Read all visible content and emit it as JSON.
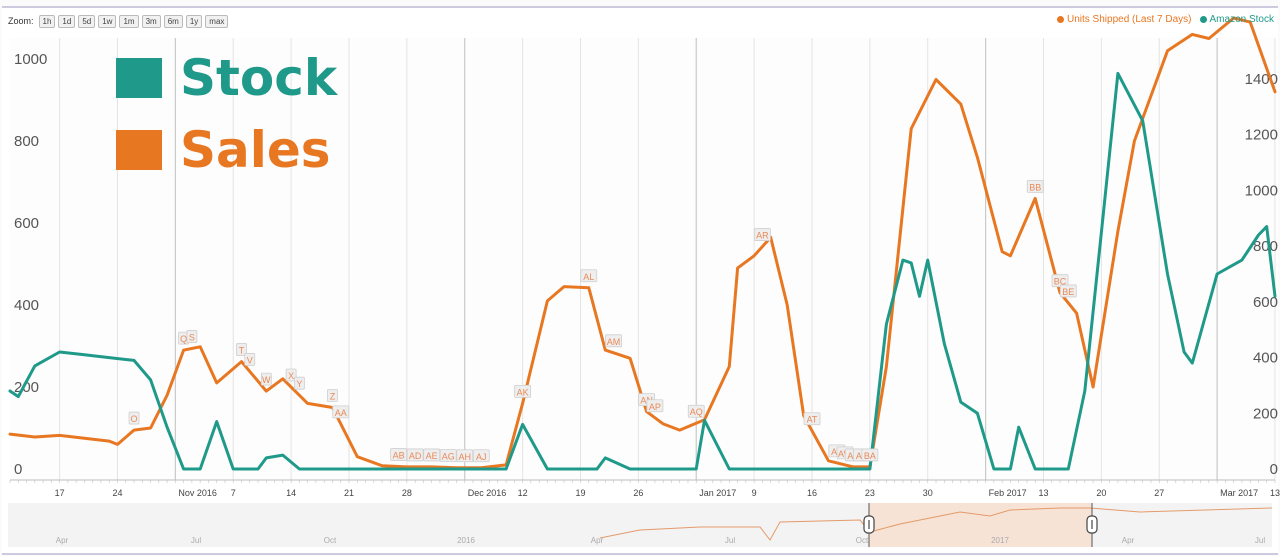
{
  "toolbar": {
    "zoom_label": "Zoom:",
    "zoom_buttons": [
      "1h",
      "1d",
      "5d",
      "1w",
      "1m",
      "3m",
      "6m",
      "1y",
      "max"
    ]
  },
  "legend_top": {
    "sales": "Units Shipped (Last 7 Days)",
    "stock": "Amazon Stock"
  },
  "overlay_legend": {
    "stock": "Stock",
    "sales": "Sales"
  },
  "colors": {
    "sales": "#e87722",
    "stock": "#1f9a8a",
    "grid": "#e4e4e4",
    "navigator_fill": "#f6e3d5",
    "navigator_line": "#e49a6a"
  },
  "chart_data": {
    "type": "line",
    "x_axis": {
      "start_date": "2016-10-11",
      "end_date": "2017-03-13",
      "tick_labels": [
        "17",
        "24",
        "Nov 2016",
        "7",
        "14",
        "21",
        "28",
        "Dec 2016",
        "12",
        "19",
        "26",
        "Jan 2017",
        "9",
        "16",
        "23",
        "30",
        "Feb 2017",
        "13",
        "20",
        "27",
        "Mar 2017",
        "13"
      ]
    },
    "y_left": {
      "range": [
        0,
        1050
      ],
      "ticks": [
        "0",
        "200",
        "400",
        "600",
        "800",
        "1000"
      ]
    },
    "y_right": {
      "range": [
        0,
        1450
      ],
      "ticks": [
        "0",
        "200",
        "400",
        "600",
        "800",
        "1000",
        "1200",
        "1400"
      ]
    },
    "series": [
      {
        "name": "Units Shipped (Last 7 Days)",
        "axis": "left",
        "points": [
          [
            "2016-10-11",
            85
          ],
          [
            "2016-10-14",
            78
          ],
          [
            "2016-10-17",
            82
          ],
          [
            "2016-10-20",
            75
          ],
          [
            "2016-10-23",
            68
          ],
          [
            "2016-10-24",
            60
          ],
          [
            "2016-10-26",
            95
          ],
          [
            "2016-10-28",
            100
          ],
          [
            "2016-10-30",
            180
          ],
          [
            "2016-11-01",
            290
          ],
          [
            "2016-11-03",
            298
          ],
          [
            "2016-11-05",
            210
          ],
          [
            "2016-11-08",
            262
          ],
          [
            "2016-11-11",
            190
          ],
          [
            "2016-11-13",
            220
          ],
          [
            "2016-11-16",
            160
          ],
          [
            "2016-11-19",
            150
          ],
          [
            "2016-11-22",
            30
          ],
          [
            "2016-11-25",
            8
          ],
          [
            "2016-11-28",
            5
          ],
          [
            "2016-12-01",
            5
          ],
          [
            "2016-12-04",
            3
          ],
          [
            "2016-12-07",
            3
          ],
          [
            "2016-12-10",
            10
          ],
          [
            "2016-12-12",
            160
          ],
          [
            "2016-12-15",
            410
          ],
          [
            "2016-12-17",
            445
          ],
          [
            "2016-12-20",
            442
          ],
          [
            "2016-12-22",
            290
          ],
          [
            "2016-12-25",
            270
          ],
          [
            "2016-12-27",
            140
          ],
          [
            "2016-12-29",
            110
          ],
          [
            "2016-12-31",
            95
          ],
          [
            "2017-01-03",
            120
          ],
          [
            "2017-01-06",
            250
          ],
          [
            "2017-01-07",
            490
          ],
          [
            "2017-01-09",
            520
          ],
          [
            "2017-01-11",
            565
          ],
          [
            "2017-01-13",
            400
          ],
          [
            "2017-01-15",
            130
          ],
          [
            "2017-01-18",
            20
          ],
          [
            "2017-01-21",
            5
          ],
          [
            "2017-01-23",
            5
          ],
          [
            "2017-01-25",
            250
          ],
          [
            "2017-01-28",
            830
          ],
          [
            "2017-01-31",
            950
          ],
          [
            "2017-02-03",
            890
          ],
          [
            "2017-02-05",
            760
          ],
          [
            "2017-02-08",
            530
          ],
          [
            "2017-02-09",
            520
          ],
          [
            "2017-02-12",
            660
          ],
          [
            "2017-02-15",
            430
          ],
          [
            "2017-02-17",
            380
          ],
          [
            "2017-02-19",
            200
          ],
          [
            "2017-02-22",
            580
          ],
          [
            "2017-02-24",
            800
          ],
          [
            "2017-02-28",
            1020
          ],
          [
            "2017-03-03",
            1060
          ],
          [
            "2017-03-05",
            1050
          ],
          [
            "2017-03-08",
            1100
          ],
          [
            "2017-03-10",
            1090
          ],
          [
            "2017-03-13",
            920
          ]
        ]
      },
      {
        "name": "Amazon Stock",
        "axis": "right",
        "points": [
          [
            "2016-10-11",
            280
          ],
          [
            "2016-10-12",
            260
          ],
          [
            "2016-10-14",
            370
          ],
          [
            "2016-10-17",
            420
          ],
          [
            "2016-10-20",
            410
          ],
          [
            "2016-10-23",
            400
          ],
          [
            "2016-10-26",
            390
          ],
          [
            "2016-10-28",
            320
          ],
          [
            "2016-10-30",
            150
          ],
          [
            "2016-11-01",
            0
          ],
          [
            "2016-11-03",
            0
          ],
          [
            "2016-11-05",
            170
          ],
          [
            "2016-11-07",
            0
          ],
          [
            "2016-11-10",
            0
          ],
          [
            "2016-11-11",
            40
          ],
          [
            "2016-11-13",
            50
          ],
          [
            "2016-11-15",
            0
          ],
          [
            "2016-12-10",
            0
          ],
          [
            "2016-12-12",
            160
          ],
          [
            "2016-12-15",
            0
          ],
          [
            "2016-12-21",
            0
          ],
          [
            "2016-12-22",
            40
          ],
          [
            "2016-12-25",
            0
          ],
          [
            "2017-01-02",
            0
          ],
          [
            "2017-01-03",
            175
          ],
          [
            "2017-01-06",
            0
          ],
          [
            "2017-01-23",
            0
          ],
          [
            "2017-01-25",
            520
          ],
          [
            "2017-01-27",
            750
          ],
          [
            "2017-01-28",
            740
          ],
          [
            "2017-01-29",
            620
          ],
          [
            "2017-01-30",
            750
          ],
          [
            "2017-02-01",
            450
          ],
          [
            "2017-02-03",
            240
          ],
          [
            "2017-02-05",
            200
          ],
          [
            "2017-02-07",
            0
          ],
          [
            "2017-02-09",
            0
          ],
          [
            "2017-02-10",
            150
          ],
          [
            "2017-02-12",
            0
          ],
          [
            "2017-02-16",
            0
          ],
          [
            "2017-02-18",
            280
          ],
          [
            "2017-02-20",
            850
          ],
          [
            "2017-02-22",
            1420
          ],
          [
            "2017-02-25",
            1250
          ],
          [
            "2017-02-28",
            700
          ],
          [
            "2017-03-02",
            420
          ],
          [
            "2017-03-03",
            380
          ],
          [
            "2017-03-06",
            700
          ],
          [
            "2017-03-09",
            750
          ],
          [
            "2017-03-11",
            840
          ],
          [
            "2017-03-12",
            870
          ],
          [
            "2017-03-13",
            620
          ]
        ]
      }
    ],
    "annotations": [
      {
        "label": "O",
        "date": "2016-10-26"
      },
      {
        "label": "Q",
        "date": "2016-11-01"
      },
      {
        "label": "S",
        "date": "2016-11-02"
      },
      {
        "label": "T",
        "date": "2016-11-08"
      },
      {
        "label": "V",
        "date": "2016-11-09"
      },
      {
        "label": "W",
        "date": "2016-11-11"
      },
      {
        "label": "X",
        "date": "2016-11-14"
      },
      {
        "label": "Y",
        "date": "2016-11-15"
      },
      {
        "label": "Z",
        "date": "2016-11-19"
      },
      {
        "label": "AA",
        "date": "2016-11-20"
      },
      {
        "label": "AB",
        "date": "2016-11-27"
      },
      {
        "label": "AD",
        "date": "2016-11-29"
      },
      {
        "label": "AE",
        "date": "2016-12-01"
      },
      {
        "label": "AG",
        "date": "2016-12-03"
      },
      {
        "label": "AH",
        "date": "2016-12-05"
      },
      {
        "label": "AJ",
        "date": "2016-12-07"
      },
      {
        "label": "AK",
        "date": "2016-12-12"
      },
      {
        "label": "AL",
        "date": "2016-12-20"
      },
      {
        "label": "AM",
        "date": "2016-12-23"
      },
      {
        "label": "AN",
        "date": "2016-12-27"
      },
      {
        "label": "AP",
        "date": "2016-12-28"
      },
      {
        "label": "AQ",
        "date": "2017-01-02"
      },
      {
        "label": "AR",
        "date": "2017-01-10"
      },
      {
        "label": "AT",
        "date": "2017-01-16"
      },
      {
        "label": "AV",
        "date": "2017-01-19"
      },
      {
        "label": "AW",
        "date": "2017-01-20"
      },
      {
        "label": "AX",
        "date": "2017-01-21"
      },
      {
        "label": "AY",
        "date": "2017-01-22"
      },
      {
        "label": "BA",
        "date": "2017-01-23"
      },
      {
        "label": "BB",
        "date": "2017-02-12"
      },
      {
        "label": "BC",
        "date": "2017-02-15"
      },
      {
        "label": "BE",
        "date": "2017-02-16"
      }
    ],
    "legend_position": "top-right",
    "grid": true
  },
  "navigator": {
    "labels": [
      "Apr",
      "Jul",
      "Oct",
      "2016",
      "Apr",
      "Jul",
      "Oct",
      "2017",
      "Apr",
      "Jul"
    ]
  }
}
